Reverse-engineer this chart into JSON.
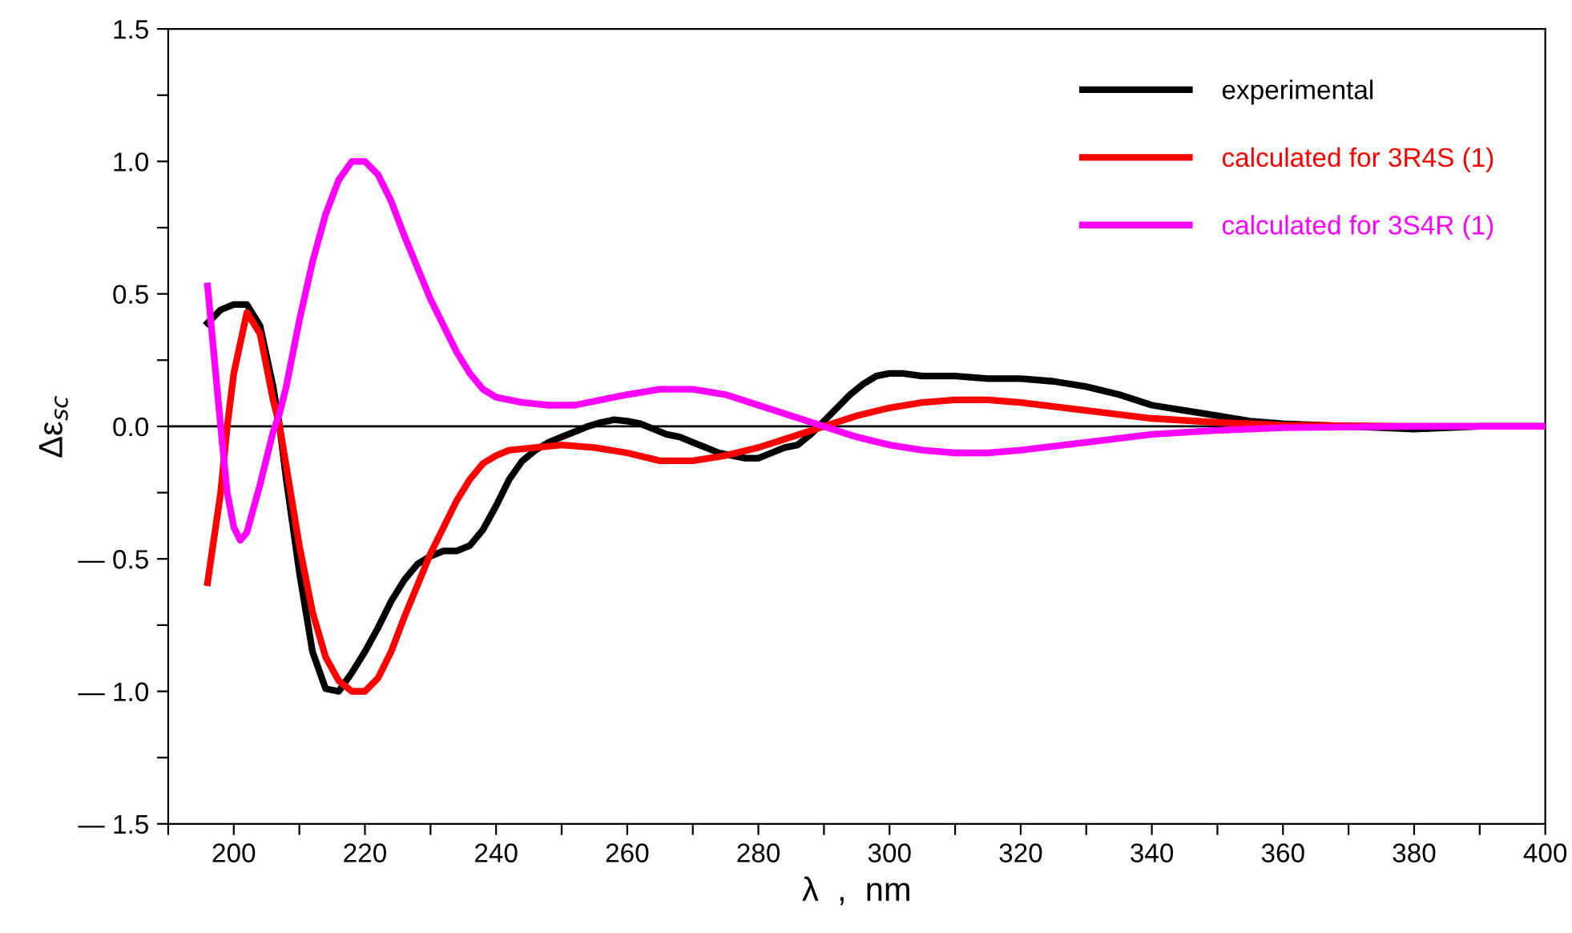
{
  "chart_data": {
    "type": "line",
    "xlabel": "λ  ,  nm",
    "ylabel": "Δε$_{sc}$",
    "xlim": [
      190,
      400
    ],
    "ylim": [
      -1.5,
      1.5
    ],
    "xticks": [
      {
        "value": 190,
        "label": null
      },
      200,
      {
        "value": 210,
        "label": null
      },
      220,
      {
        "value": 230,
        "label": null
      },
      240,
      {
        "value": 250,
        "label": null
      },
      260,
      {
        "value": 270,
        "label": null
      },
      280,
      {
        "value": 290,
        "label": null
      },
      300,
      {
        "value": 310,
        "label": null
      },
      320,
      {
        "value": 330,
        "label": null
      },
      340,
      {
        "value": 350,
        "label": null
      },
      360,
      {
        "value": 370,
        "label": null
      },
      380,
      {
        "value": 390,
        "label": null
      },
      400
    ],
    "yticks": [
      {
        "value": -1.5,
        "label": "— 1.5"
      },
      {
        "value": -1.25,
        "label": null
      },
      {
        "value": -1.0,
        "label": "— 1.0"
      },
      {
        "value": -0.75,
        "label": null
      },
      {
        "value": -0.5,
        "label": "— 0.5"
      },
      {
        "value": -0.25,
        "label": null
      },
      {
        "value": 0,
        "label": "0.0"
      },
      {
        "value": 0.25,
        "label": null
      },
      {
        "value": 0.5,
        "label": "0.5"
      },
      {
        "value": 0.75,
        "label": null
      },
      {
        "value": 1.0,
        "label": "1.0"
      },
      {
        "value": 1.25,
        "label": null
      },
      1.5
    ],
    "grid": false,
    "legend": "top right",
    "marker": "none",
    "line_style": "solid",
    "ref_lines": [
      {
        "axis": "y",
        "value": 0,
        "color": "#000000"
      }
    ],
    "series": [
      {
        "name": "experimental",
        "color": "#000000",
        "x": [
          196,
          198,
          200,
          202,
          204,
          206,
          207,
          208,
          210,
          212,
          214,
          216,
          218,
          220,
          222,
          224,
          226,
          228,
          230,
          232,
          234,
          236,
          238,
          240,
          242,
          244,
          246,
          248,
          250,
          252,
          254,
          256,
          258,
          260,
          262,
          264,
          266,
          268,
          270,
          272,
          274,
          276,
          278,
          280,
          282,
          284,
          286,
          288,
          290,
          292,
          294,
          296,
          298,
          300,
          302,
          305,
          310,
          315,
          320,
          325,
          330,
          335,
          340,
          345,
          350,
          355,
          360,
          370,
          380,
          390,
          400
        ],
        "values": [
          0.39,
          0.44,
          0.46,
          0.46,
          0.38,
          0.15,
          0.0,
          -0.2,
          -0.55,
          -0.85,
          -0.99,
          -1.0,
          -0.93,
          -0.85,
          -0.76,
          -0.66,
          -0.58,
          -0.52,
          -0.49,
          -0.47,
          -0.47,
          -0.45,
          -0.39,
          -0.3,
          -0.2,
          -0.13,
          -0.09,
          -0.06,
          -0.04,
          -0.02,
          0.0,
          0.015,
          0.025,
          0.02,
          0.01,
          -0.01,
          -0.03,
          -0.04,
          -0.06,
          -0.08,
          -0.1,
          -0.11,
          -0.12,
          -0.12,
          -0.1,
          -0.08,
          -0.07,
          -0.03,
          0.02,
          0.07,
          0.12,
          0.16,
          0.19,
          0.2,
          0.2,
          0.19,
          0.19,
          0.18,
          0.18,
          0.17,
          0.15,
          0.12,
          0.08,
          0.06,
          0.04,
          0.02,
          0.01,
          0.0,
          -0.01,
          0.0,
          0.0
        ]
      },
      {
        "name": "calculated for 3R4S (1)",
        "color": "#ff0000",
        "x": [
          196,
          198,
          199,
          200,
          202,
          204,
          206,
          207,
          208,
          210,
          212,
          214,
          216,
          218,
          220,
          222,
          224,
          226,
          228,
          230,
          232,
          234,
          236,
          238,
          240,
          242,
          246,
          250,
          255,
          260,
          265,
          270,
          275,
          280,
          285,
          290,
          295,
          300,
          305,
          310,
          315,
          320,
          330,
          340,
          350,
          360,
          380,
          400
        ],
        "values": [
          -0.59,
          -0.25,
          0.0,
          0.2,
          0.43,
          0.35,
          0.1,
          0.0,
          -0.15,
          -0.45,
          -0.7,
          -0.87,
          -0.96,
          -1.0,
          -1.0,
          -0.95,
          -0.85,
          -0.72,
          -0.6,
          -0.48,
          -0.38,
          -0.28,
          -0.2,
          -0.14,
          -0.11,
          -0.09,
          -0.08,
          -0.07,
          -0.08,
          -0.1,
          -0.13,
          -0.13,
          -0.11,
          -0.08,
          -0.04,
          0.0,
          0.04,
          0.07,
          0.09,
          0.1,
          0.1,
          0.09,
          0.06,
          0.03,
          0.015,
          0.005,
          0.0,
          0.0
        ]
      },
      {
        "name": "calculated for 3S4R (1)",
        "color": "#ff00ff",
        "x": [
          196,
          198,
          199,
          200,
          201,
          202,
          204,
          206,
          207,
          208,
          210,
          212,
          214,
          216,
          218,
          220,
          222,
          224,
          226,
          228,
          230,
          232,
          234,
          236,
          238,
          240,
          244,
          248,
          252,
          256,
          260,
          265,
          270,
          275,
          280,
          285,
          290,
          295,
          300,
          305,
          310,
          315,
          320,
          330,
          340,
          350,
          360,
          380,
          400
        ],
        "values": [
          0.53,
          0.0,
          -0.25,
          -0.38,
          -0.43,
          -0.4,
          -0.22,
          -0.02,
          0.05,
          0.15,
          0.4,
          0.62,
          0.8,
          0.93,
          1.0,
          1.0,
          0.95,
          0.85,
          0.72,
          0.6,
          0.48,
          0.38,
          0.28,
          0.2,
          0.14,
          0.11,
          0.09,
          0.08,
          0.08,
          0.1,
          0.12,
          0.14,
          0.14,
          0.12,
          0.08,
          0.04,
          0.0,
          -0.04,
          -0.07,
          -0.09,
          -0.1,
          -0.1,
          -0.09,
          -0.06,
          -0.03,
          -0.015,
          -0.005,
          0.0,
          0.0
        ]
      }
    ]
  }
}
